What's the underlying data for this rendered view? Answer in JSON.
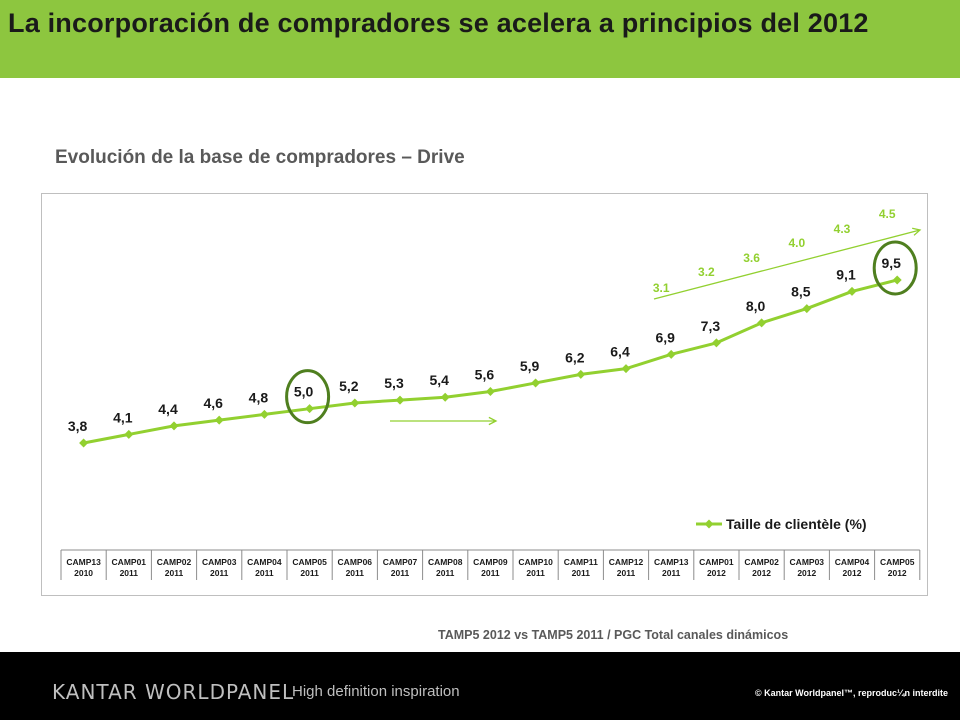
{
  "slide": {
    "title": "La incorporación de compradores se acelera a principios del 2012",
    "subtitle": "Evolución de la base de compradores – Drive",
    "source_note": "TAMP5 2012 vs TAMP5 2011 / PGC Total canales dinámicos"
  },
  "footer": {
    "brand": "KANTAR WORLDPANEL",
    "tagline": "High definition inspiration",
    "copyright": "© Kantar Worldpanel™, reproduc¼n interdite"
  },
  "colors": {
    "accent": "#8dc63f",
    "series": "#92d030",
    "text": "#1a1a1a",
    "footer_bg": "#000000"
  },
  "chart_data": {
    "type": "line",
    "categories": [
      "CAMP13 2010",
      "CAMP01 2011",
      "CAMP02 2011",
      "CAMP03 2011",
      "CAMP04 2011",
      "CAMP05 2011",
      "CAMP06 2011",
      "CAMP07 2011",
      "CAMP08 2011",
      "CAMP09 2011",
      "CAMP10 2011",
      "CAMP11 2011",
      "CAMP12 2011",
      "CAMP13 2011",
      "CAMP01 2012",
      "CAMP02 2012",
      "CAMP03 2012",
      "CAMP04 2012",
      "CAMP05 2012"
    ],
    "series": [
      {
        "name": "Taille de clientèle (%)",
        "values": [
          3.8,
          4.1,
          4.4,
          4.6,
          4.8,
          5.0,
          5.2,
          5.3,
          5.4,
          5.6,
          5.9,
          6.2,
          6.4,
          6.9,
          7.3,
          8.0,
          8.5,
          9.1,
          9.5
        ],
        "labels": [
          "3,8",
          "4,1",
          "4,4",
          "4,6",
          "4,8",
          "5,0",
          "5,2",
          "5,3",
          "5,4",
          "5,6",
          "5,9",
          "6,2",
          "6,4",
          "6,9",
          "7,3",
          "8,0",
          "8,5",
          "9,1",
          "9,5"
        ]
      }
    ],
    "annotations": [
      {
        "label": "3.1",
        "category": "CAMP13 2011"
      },
      {
        "label": "3.2",
        "category": "CAMP01 2012"
      },
      {
        "label": "3.6",
        "category": "CAMP02 2012"
      },
      {
        "label": "4.0",
        "category": "CAMP03 2012"
      },
      {
        "label": "4.3",
        "category": "CAMP04 2012"
      },
      {
        "label": "4.5",
        "category": "CAMP05 2012"
      }
    ],
    "highlighted": [
      "CAMP05 2011",
      "CAMP05 2012"
    ],
    "legend": "bottom-right",
    "grid": false
  }
}
